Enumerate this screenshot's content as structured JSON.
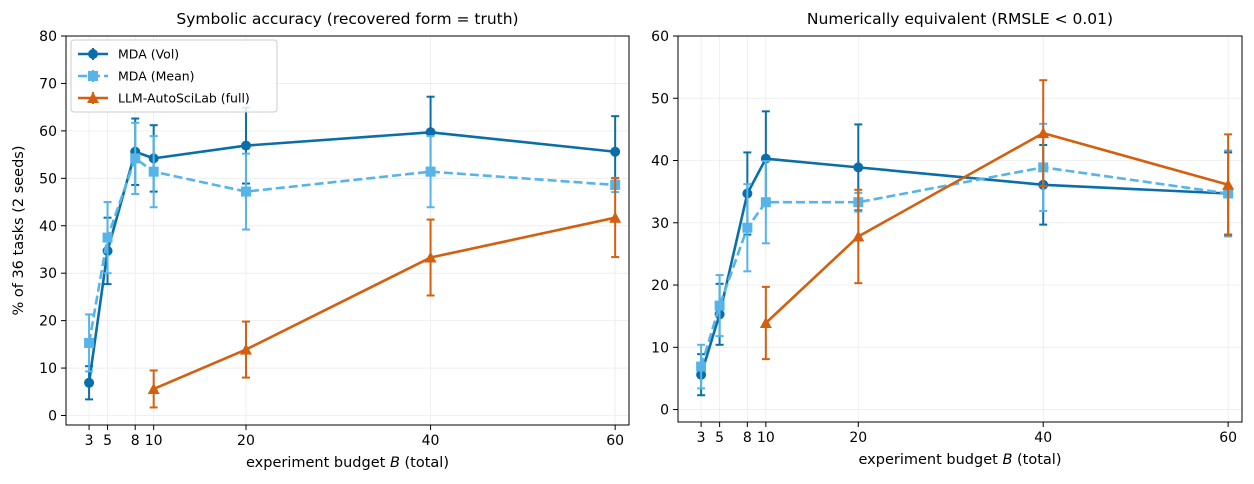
{
  "chart_data": [
    {
      "type": "line",
      "title": "Symbolic accuracy (recovered form = truth)",
      "xlabel_pre": "experiment budget ",
      "xlabel_var": "B",
      "xlabel_post": " (total)",
      "ylabel": "% of 36 tasks (2 seeds)",
      "xlim": [
        0.5,
        61.5
      ],
      "ylim": [
        -2,
        80
      ],
      "xticks": [
        3,
        5,
        8,
        10,
        20,
        40,
        60
      ],
      "yticks": [
        0,
        10,
        20,
        30,
        40,
        50,
        60,
        70,
        80
      ],
      "grid": true,
      "legend_position": "upper-left",
      "series": [
        {
          "name": "MDA (Vol)",
          "color": "#0a6fa9",
          "marker": "circle",
          "dash": "solid",
          "x": [
            3,
            5,
            8,
            10,
            20,
            40,
            60
          ],
          "y": [
            6.9,
            34.7,
            55.6,
            54.2,
            56.9,
            59.7,
            55.6
          ],
          "err": [
            3.5,
            7.0,
            7.0,
            7.0,
            8.0,
            7.5,
            7.5
          ]
        },
        {
          "name": "MDA (Mean)",
          "color": "#56b4e9",
          "marker": "square",
          "dash": "dashed",
          "x": [
            3,
            5,
            8,
            10,
            20,
            40,
            60
          ],
          "y": [
            15.3,
            37.5,
            54.2,
            51.4,
            47.2,
            51.4,
            48.6
          ],
          "err": [
            6.0,
            7.5,
            7.5,
            7.5,
            8.0,
            7.5,
            1.5
          ]
        },
        {
          "name": "LLM-AutoSciLab (full)",
          "color": "#d35f0f",
          "marker": "triangle",
          "dash": "solid",
          "x": [
            10,
            20,
            40,
            60
          ],
          "y": [
            5.6,
            13.9,
            33.3,
            41.7
          ],
          "err": [
            3.9,
            5.9,
            8.0,
            8.3
          ]
        }
      ]
    },
    {
      "type": "line",
      "title": "Numerically equivalent (RMSLE < 0.01)",
      "xlabel_pre": "experiment budget ",
      "xlabel_var": "B",
      "xlabel_post": " (total)",
      "xlim": [
        0.5,
        61.5
      ],
      "ylim": [
        -2,
        60
      ],
      "xticks": [
        3,
        5,
        8,
        10,
        20,
        40,
        60
      ],
      "yticks": [
        0,
        10,
        20,
        30,
        40,
        50,
        60
      ],
      "grid": true,
      "series": [
        {
          "name": "MDA (Vol)",
          "color": "#0a6fa9",
          "marker": "circle",
          "dash": "solid",
          "x": [
            3,
            5,
            8,
            10,
            20,
            40,
            60
          ],
          "y": [
            5.6,
            15.3,
            34.7,
            40.3,
            38.9,
            36.1,
            34.7
          ],
          "err": [
            3.3,
            4.9,
            6.6,
            7.6,
            6.9,
            6.4,
            6.6
          ]
        },
        {
          "name": "MDA (Mean)",
          "color": "#56b4e9",
          "marker": "square",
          "dash": "dashed",
          "x": [
            3,
            5,
            8,
            10,
            20,
            40,
            60
          ],
          "y": [
            6.9,
            16.7,
            29.2,
            33.3,
            33.3,
            38.9,
            34.7
          ],
          "err": [
            3.5,
            4.9,
            7.0,
            6.6,
            1.5,
            7.0,
            6.9
          ]
        },
        {
          "name": "LLM-AutoSciLab (full)",
          "color": "#d35f0f",
          "marker": "triangle",
          "dash": "solid",
          "x": [
            10,
            20,
            40,
            60
          ],
          "y": [
            13.9,
            27.8,
            44.4,
            36.1
          ],
          "err": [
            5.8,
            7.5,
            8.5,
            8.1
          ]
        }
      ]
    }
  ]
}
